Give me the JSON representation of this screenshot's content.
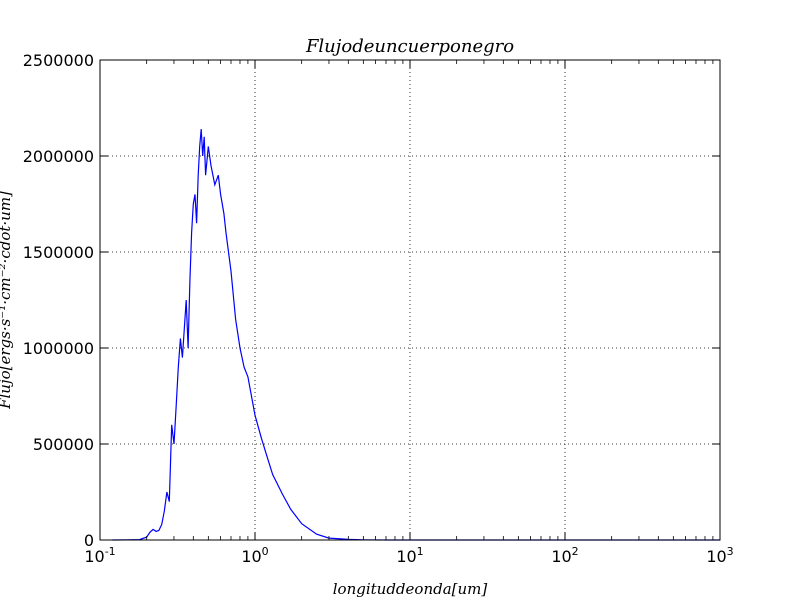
{
  "chart_data": {
    "type": "line",
    "title": "Flujodeuncuerponegro",
    "xlabel": "longituddeonda[um]",
    "ylabel": "Flujo[ergs·s⁻¹·cm⁻²·cdot·um]",
    "xscale": "log",
    "xlim": [
      0.1,
      1000
    ],
    "ylim": [
      0,
      2500000
    ],
    "grid": true,
    "x_ticks": [
      {
        "base": "10",
        "exp": "-1",
        "value": 0.1
      },
      {
        "base": "10",
        "exp": "0",
        "value": 1
      },
      {
        "base": "10",
        "exp": "1",
        "value": 10
      },
      {
        "base": "10",
        "exp": "2",
        "value": 100
      },
      {
        "base": "10",
        "exp": "3",
        "value": 1000
      }
    ],
    "y_ticks": [
      {
        "label": "0",
        "value": 0
      },
      {
        "label": "500000",
        "value": 500000
      },
      {
        "label": "1000000",
        "value": 1000000
      },
      {
        "label": "1500000",
        "value": 1500000
      },
      {
        "label": "2000000",
        "value": 2000000
      },
      {
        "label": "2500000",
        "value": 2500000
      }
    ],
    "series": [
      {
        "color": "#0000ff",
        "x": [
          0.12,
          0.15,
          0.18,
          0.2,
          0.21,
          0.22,
          0.23,
          0.24,
          0.25,
          0.26,
          0.27,
          0.28,
          0.285,
          0.29,
          0.3,
          0.31,
          0.32,
          0.33,
          0.34,
          0.35,
          0.36,
          0.37,
          0.38,
          0.39,
          0.4,
          0.41,
          0.42,
          0.43,
          0.44,
          0.45,
          0.46,
          0.47,
          0.48,
          0.5,
          0.52,
          0.55,
          0.58,
          0.6,
          0.63,
          0.65,
          0.7,
          0.75,
          0.8,
          0.85,
          0.9,
          1.0,
          1.1,
          1.2,
          1.3,
          1.5,
          1.7,
          2.0,
          2.5,
          3.0,
          4.0,
          5.0,
          7.0,
          10,
          20,
          50,
          100,
          1000
        ],
        "y": [
          0,
          500,
          2000,
          15000,
          40000,
          55000,
          45000,
          50000,
          80000,
          150000,
          250000,
          200000,
          400000,
          600000,
          500000,
          700000,
          900000,
          1050000,
          950000,
          1100000,
          1250000,
          1000000,
          1350000,
          1600000,
          1750000,
          1800000,
          1650000,
          1900000,
          2050000,
          2140000,
          2000000,
          2100000,
          1900000,
          2050000,
          1950000,
          1850000,
          1900000,
          1800000,
          1700000,
          1600000,
          1400000,
          1150000,
          1000000,
          900000,
          850000,
          650000,
          530000,
          430000,
          340000,
          240000,
          160000,
          85000,
          30000,
          10000,
          3000,
          1000,
          200,
          50,
          5,
          0,
          0,
          0
        ]
      }
    ]
  }
}
